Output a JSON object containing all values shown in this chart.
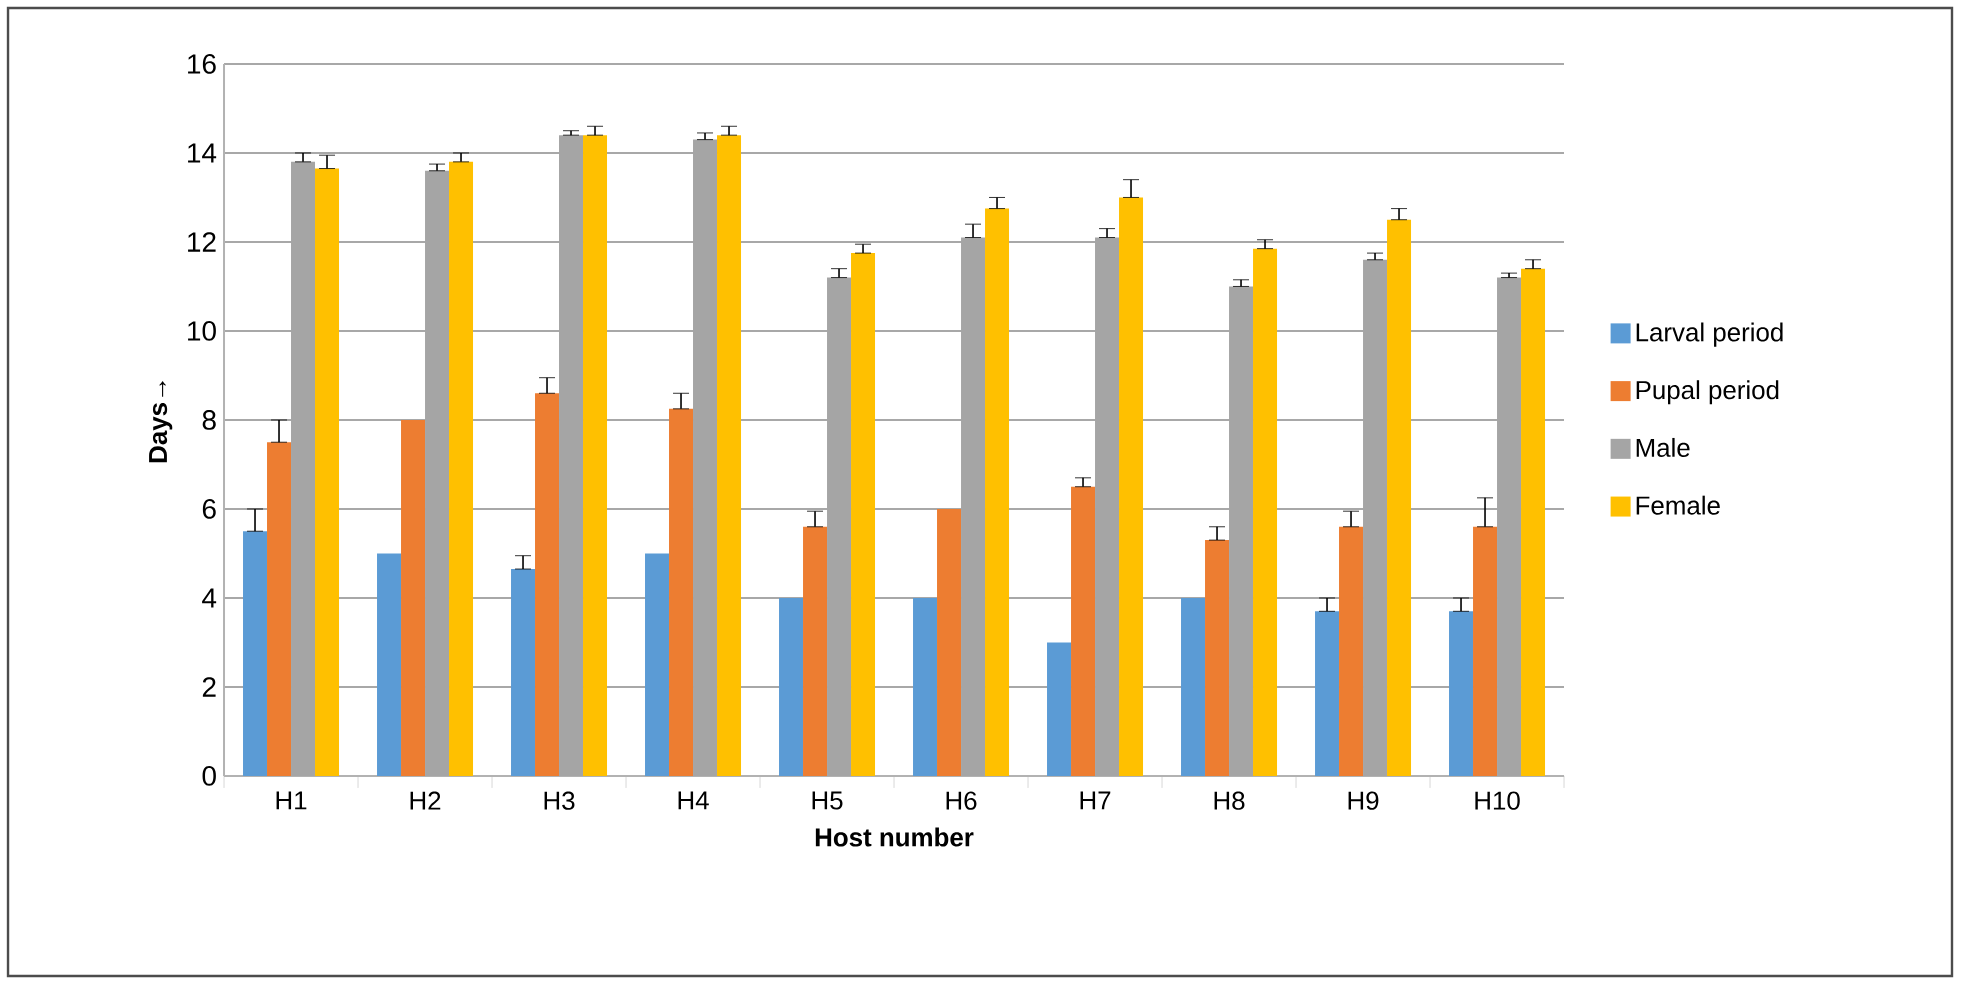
{
  "chart_data": {
    "type": "bar",
    "xlabel": "Host number",
    "ylabel": "Days→",
    "categories": [
      "H1",
      "H2",
      "H3",
      "H4",
      "H5",
      "H6",
      "H7",
      "H8",
      "H9",
      "H10"
    ],
    "series": [
      {
        "name": "Larval period",
        "color": "#5b9bd5",
        "values": [
          5.5,
          5.0,
          4.65,
          5.0,
          4.0,
          4.0,
          3.0,
          4.0,
          3.7,
          3.7
        ],
        "errors": [
          [
            5.5,
            6.0
          ],
          null,
          [
            4.65,
            4.95
          ],
          null,
          null,
          null,
          null,
          null,
          [
            3.7,
            4.0
          ],
          [
            3.7,
            4.0
          ]
        ]
      },
      {
        "name": "Pupal period",
        "color": "#ed7d31",
        "values": [
          7.5,
          8.0,
          8.6,
          8.25,
          5.6,
          6.0,
          6.5,
          5.3,
          5.6,
          5.6
        ],
        "errors": [
          [
            7.5,
            8.0
          ],
          null,
          [
            8.6,
            8.95
          ],
          [
            8.25,
            8.6
          ],
          [
            5.6,
            5.95
          ],
          null,
          [
            6.5,
            6.7
          ],
          [
            5.3,
            5.6
          ],
          [
            5.6,
            5.95
          ],
          [
            5.6,
            6.25
          ]
        ]
      },
      {
        "name": "Male",
        "color": "#a5a5a5",
        "values": [
          13.8,
          13.6,
          14.4,
          14.3,
          11.2,
          12.1,
          12.1,
          11.0,
          11.6,
          11.2
        ],
        "errors": [
          [
            13.8,
            14.0
          ],
          [
            13.6,
            13.75
          ],
          [
            14.4,
            14.5
          ],
          [
            14.3,
            14.45
          ],
          [
            11.2,
            11.4
          ],
          [
            12.1,
            12.4
          ],
          [
            12.1,
            12.3
          ],
          [
            11.0,
            11.15
          ],
          [
            11.6,
            11.75
          ],
          [
            11.2,
            11.3
          ]
        ]
      },
      {
        "name": "Female",
        "color": "#ffc000",
        "values": [
          13.65,
          13.8,
          14.4,
          14.4,
          11.75,
          12.75,
          13.0,
          11.85,
          12.5,
          11.4
        ],
        "errors": [
          [
            13.65,
            13.95
          ],
          [
            13.8,
            14.0
          ],
          [
            14.4,
            14.6
          ],
          [
            14.4,
            14.6
          ],
          [
            11.75,
            11.95
          ],
          [
            12.75,
            13.0
          ],
          [
            13.0,
            13.4
          ],
          [
            11.85,
            12.05
          ],
          [
            12.5,
            12.75
          ],
          [
            11.4,
            11.6
          ]
        ]
      }
    ],
    "ylim": [
      0,
      16
    ],
    "yticks": [
      0,
      2,
      4,
      6,
      8,
      10,
      12,
      14,
      16
    ],
    "grid": "y",
    "legend": "right"
  }
}
